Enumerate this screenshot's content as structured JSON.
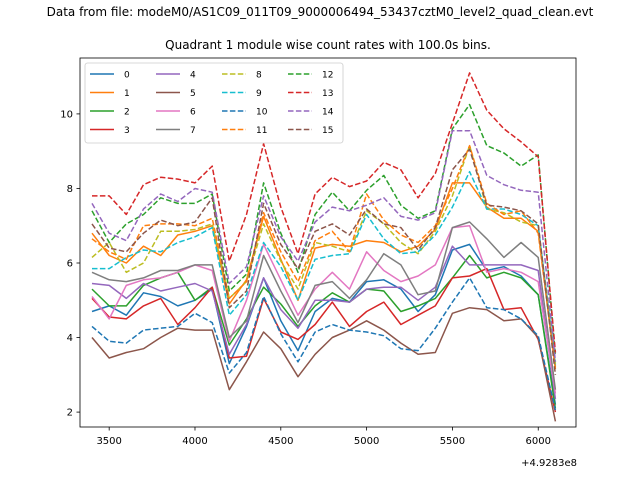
{
  "suptitle": "Data from file: modeM0/AS1C09_011T09_9000006494_53437cztM0_level2_quad_clean.evt",
  "chart_data": {
    "type": "line",
    "title": "Quadrant 1 module wise count rates with 100.0s bins.",
    "xlabel": "",
    "ylabel": "",
    "x_offset_label": "+4.9283e8",
    "xlim": [
      3330,
      6220
    ],
    "ylim": [
      1.6,
      11.5
    ],
    "xticks": [
      3500,
      4000,
      4500,
      5000,
      5500,
      6000
    ],
    "yticks": [
      2,
      4,
      6,
      8,
      10
    ],
    "grid": false,
    "legend_position": "top-left",
    "x": [
      3400,
      3500,
      3600,
      3700,
      3800,
      3900,
      4000,
      4100,
      4200,
      4300,
      4400,
      4500,
      4600,
      4700,
      4800,
      4900,
      5000,
      5100,
      5200,
      5300,
      5400,
      5500,
      5600,
      5700,
      5800,
      5900,
      6000,
      6100
    ],
    "series": [
      {
        "name": "0",
        "color": "#1f77b4",
        "dash": "solid",
        "values": [
          4.7,
          4.85,
          4.6,
          5.2,
          5.1,
          4.85,
          5.0,
          5.3,
          3.3,
          4.3,
          5.6,
          4.45,
          3.65,
          4.7,
          5.05,
          4.95,
          5.5,
          5.55,
          5.3,
          4.7,
          5.15,
          6.35,
          6.5,
          5.8,
          5.9,
          5.65,
          5.15,
          2.2
        ]
      },
      {
        "name": "1",
        "color": "#ff7f0e",
        "dash": "solid",
        "values": [
          6.8,
          6.2,
          6.0,
          6.45,
          6.2,
          6.75,
          6.85,
          7.0,
          4.9,
          5.55,
          7.25,
          6.1,
          5.0,
          6.4,
          6.5,
          6.45,
          6.6,
          6.55,
          6.3,
          6.45,
          6.9,
          8.15,
          8.15,
          7.5,
          7.2,
          7.2,
          6.85,
          3.2
        ]
      },
      {
        "name": "2",
        "color": "#2ca02c",
        "dash": "solid",
        "values": [
          5.3,
          4.85,
          4.85,
          5.4,
          5.6,
          5.75,
          5.0,
          5.35,
          3.8,
          4.5,
          5.35,
          4.9,
          4.3,
          4.85,
          5.2,
          4.95,
          5.3,
          5.25,
          4.7,
          4.85,
          5.05,
          5.6,
          6.2,
          5.6,
          5.75,
          5.6,
          5.15,
          2.1
        ]
      },
      {
        "name": "3",
        "color": "#d62728",
        "dash": "solid",
        "values": [
          5.05,
          4.55,
          4.5,
          4.85,
          5.05,
          4.35,
          4.8,
          5.35,
          3.45,
          3.5,
          5.05,
          4.15,
          3.95,
          4.35,
          4.95,
          4.3,
          4.7,
          4.95,
          4.35,
          4.6,
          4.85,
          5.6,
          5.65,
          5.85,
          4.75,
          4.8,
          3.95,
          2.0
        ]
      },
      {
        "name": "4",
        "color": "#9467bd",
        "dash": "solid",
        "values": [
          5.45,
          5.4,
          5.05,
          5.45,
          5.25,
          5.35,
          5.45,
          5.25,
          3.55,
          4.35,
          5.6,
          4.75,
          4.25,
          5.0,
          5.0,
          4.95,
          5.3,
          5.35,
          5.35,
          5.0,
          5.35,
          6.45,
          5.95,
          5.95,
          5.95,
          5.95,
          5.8,
          2.35
        ]
      },
      {
        "name": "5",
        "color": "#8c564b",
        "dash": "solid",
        "values": [
          4.0,
          3.45,
          3.6,
          3.7,
          4.0,
          4.25,
          4.2,
          4.2,
          2.6,
          3.35,
          4.15,
          3.7,
          2.95,
          3.55,
          4.0,
          4.2,
          4.45,
          4.2,
          3.85,
          3.55,
          3.6,
          4.65,
          4.8,
          4.75,
          4.45,
          4.5,
          4.0,
          1.75
        ]
      },
      {
        "name": "6",
        "color": "#e377c2",
        "dash": "solid",
        "values": [
          5.1,
          4.5,
          5.4,
          5.55,
          5.6,
          5.75,
          5.95,
          5.8,
          3.9,
          5.0,
          6.5,
          5.55,
          4.6,
          5.3,
          5.75,
          5.3,
          6.3,
          5.8,
          5.5,
          5.65,
          5.95,
          6.95,
          7.0,
          5.75,
          5.85,
          5.75,
          5.5,
          2.5
        ]
      },
      {
        "name": "7",
        "color": "#7f7f7f",
        "dash": "solid",
        "values": [
          5.75,
          5.55,
          5.5,
          5.6,
          5.8,
          5.8,
          5.95,
          5.95,
          4.0,
          4.45,
          6.2,
          5.25,
          4.4,
          5.4,
          5.5,
          5.05,
          5.55,
          6.25,
          5.95,
          5.15,
          5.25,
          6.95,
          7.1,
          6.65,
          6.15,
          6.55,
          6.15,
          2.6
        ]
      },
      {
        "name": "8",
        "color": "#bcbd22",
        "dash": "dashed",
        "values": [
          6.15,
          6.55,
          5.75,
          6.0,
          6.85,
          6.85,
          6.9,
          7.05,
          5.05,
          5.5,
          7.05,
          6.05,
          5.3,
          6.55,
          6.45,
          6.3,
          7.4,
          7.05,
          6.55,
          6.25,
          6.85,
          7.8,
          9.15,
          7.45,
          7.35,
          7.1,
          7.0,
          3.3
        ]
      },
      {
        "name": "9",
        "color": "#17becf",
        "dash": "dashed",
        "values": [
          5.85,
          5.85,
          6.15,
          6.35,
          6.3,
          6.55,
          6.7,
          6.95,
          4.6,
          5.15,
          6.55,
          5.9,
          5.0,
          6.1,
          6.2,
          6.25,
          7.3,
          6.65,
          6.25,
          6.3,
          6.75,
          7.5,
          8.45,
          7.45,
          7.45,
          7.3,
          7.0,
          3.25
        ]
      },
      {
        "name": "10",
        "color": "#1f77b4",
        "dash": "dashed",
        "values": [
          4.3,
          3.9,
          3.85,
          4.2,
          4.25,
          4.3,
          4.65,
          4.4,
          3.05,
          3.6,
          5.1,
          4.1,
          3.35,
          4.15,
          4.35,
          4.2,
          4.15,
          4.05,
          3.7,
          3.65,
          4.25,
          4.95,
          5.6,
          4.8,
          4.75,
          4.5,
          4.05,
          2.05
        ]
      },
      {
        "name": "11",
        "color": "#ff7f0e",
        "dash": "dashed",
        "values": [
          6.65,
          6.3,
          6.1,
          7.0,
          7.05,
          7.05,
          7.0,
          7.2,
          5.05,
          5.5,
          7.35,
          6.3,
          5.5,
          6.6,
          6.85,
          6.3,
          7.85,
          7.15,
          6.75,
          6.55,
          7.0,
          8.0,
          9.15,
          7.6,
          7.3,
          7.4,
          6.8,
          3.15
        ]
      },
      {
        "name": "12",
        "color": "#2ca02c",
        "dash": "dashed",
        "values": [
          7.4,
          6.55,
          7.05,
          7.3,
          7.75,
          7.6,
          7.6,
          7.85,
          5.25,
          5.7,
          8.15,
          6.8,
          5.75,
          7.3,
          7.9,
          7.4,
          7.95,
          8.35,
          7.55,
          7.2,
          7.4,
          9.6,
          10.25,
          9.15,
          8.95,
          8.6,
          8.9,
          3.5
        ]
      },
      {
        "name": "13",
        "color": "#d62728",
        "dash": "dashed",
        "values": [
          7.8,
          7.8,
          7.3,
          8.1,
          8.3,
          8.25,
          8.15,
          8.6,
          6.05,
          7.3,
          9.2,
          7.5,
          6.25,
          7.85,
          8.3,
          8.05,
          8.2,
          8.7,
          8.5,
          7.75,
          8.4,
          9.75,
          11.1,
          10.1,
          9.6,
          9.25,
          8.85,
          3.6
        ]
      },
      {
        "name": "14",
        "color": "#9467bd",
        "dash": "dashed",
        "values": [
          7.6,
          6.8,
          6.6,
          7.45,
          7.85,
          7.65,
          8.0,
          7.9,
          5.45,
          5.9,
          7.8,
          6.7,
          6.05,
          7.1,
          7.5,
          7.4,
          7.55,
          7.75,
          7.25,
          7.15,
          7.35,
          9.55,
          9.55,
          8.35,
          8.1,
          7.95,
          7.9,
          3.35
        ]
      },
      {
        "name": "15",
        "color": "#8c564b",
        "dash": "dashed",
        "values": [
          7.05,
          6.4,
          6.3,
          6.8,
          7.15,
          7.0,
          7.1,
          7.75,
          4.8,
          5.25,
          7.6,
          6.5,
          5.85,
          6.85,
          7.05,
          6.75,
          7.45,
          7.05,
          6.95,
          6.35,
          6.95,
          8.5,
          9.05,
          7.55,
          7.5,
          7.4,
          7.05,
          3.0
        ]
      }
    ]
  }
}
